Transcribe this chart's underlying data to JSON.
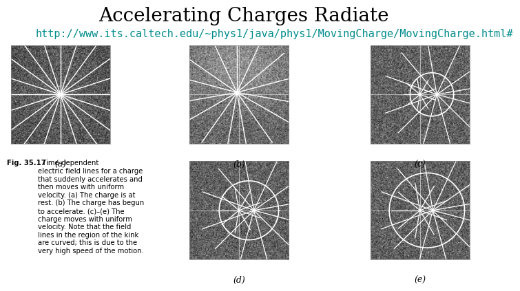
{
  "title": "Accelerating Charges Radiate",
  "url": "http://www.its.caltech.edu/~phys1/java/phys1/MovingCharge/MovingCharge.html#",
  "title_fontsize": 20,
  "url_fontsize": 11,
  "url_color": "#008B8B",
  "title_color": "#000000",
  "bg_color": "#ffffff",
  "labels_top": [
    "(a)",
    "(b)",
    "(c)"
  ],
  "labels_bottom": [
    "(d)",
    "(e)"
  ],
  "caption_bold": "Fig. 35.17",
  "caption_text": "  Time-dependent\nelectric field lines for a charge\nthat suddenly accelerates and\nthen moves with uniform\nvelocity. (a) The charge is at\nrest. (b) The charge has begun\nto accelerate. (c)–(e) The\ncharge moves with uniform\nvelocity. Note that the field\nlines in the region of the kink\nare curved; this is due to the\nvery high speed of the motion.",
  "noise_seed_a": 42,
  "noise_seed_b": 7,
  "noise_seed_c": 13,
  "noise_seed_d": 21,
  "noise_seed_e": 99,
  "img_size": 100
}
